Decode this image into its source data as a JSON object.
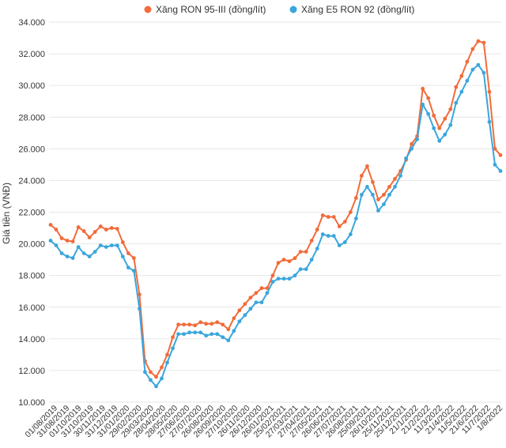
{
  "chart_data": {
    "type": "line",
    "title": "",
    "xlabel": "",
    "ylabel": "Giá tiền (VNĐ)",
    "ylim": [
      10000,
      34000
    ],
    "yticks": [
      10000,
      12000,
      14000,
      16000,
      18000,
      20000,
      22000,
      24000,
      26000,
      28000,
      30000,
      32000,
      34000
    ],
    "ytick_labels": [
      "10.000",
      "12.000",
      "14.000",
      "16.000",
      "18.000",
      "20.000",
      "22.000",
      "24.000",
      "26.000",
      "28.000",
      "30.000",
      "32.000",
      "34.000"
    ],
    "grid": true,
    "legend_position": "top-center",
    "x_tick_labels": [
      "01/08/2019",
      "31/08/2019",
      "01/10/2019",
      "31/10/2019",
      "30/11/2019",
      "31/12/2019",
      "31/01/2020",
      "29/02/2020",
      "29/03/2020",
      "28/04/2020",
      "28/05/2020",
      "27/06/2020",
      "27/07/2020",
      "26/08/2020",
      "26/09/2020",
      "27/10/2020",
      "26/11/2020",
      "26/12/2020",
      "26/01/2021",
      "25/02/2021",
      "27/03/2021",
      "27/04/2021",
      "27/05/2021",
      "26/06/2021",
      "27/07/2021",
      "26/08/2021",
      "25/09/2021",
      "26/10/2021",
      "25/11/2021",
      "25/12/2021",
      "21/1/2022",
      "21/2/2022",
      "11/3/2022",
      "21/4/2022",
      "11/5/2022",
      "21/6/2022",
      "11/7/2022",
      "1/8/2022"
    ],
    "series": [
      {
        "name": "Xăng RON 95-III (đồng/lít)",
        "color": "#f26b3a",
        "values": [
          21200,
          20900,
          20350,
          20200,
          20150,
          21050,
          20800,
          20400,
          20750,
          21100,
          20900,
          21000,
          20950,
          20100,
          19400,
          19100,
          16800,
          12600,
          11900,
          11600,
          12200,
          13000,
          14100,
          14900,
          14900,
          14900,
          14850,
          15050,
          14950,
          14950,
          15050,
          14900,
          14600,
          15300,
          15800,
          16200,
          16600,
          16900,
          17200,
          17200,
          18000,
          18800,
          19000,
          18900,
          19100,
          19500,
          19500,
          20200,
          20900,
          21800,
          21700,
          21700,
          21100,
          21400,
          22000,
          22900,
          24300,
          24900,
          23900,
          22800,
          23100,
          23600,
          24100,
          24600,
          25300,
          26300,
          26800,
          29800,
          29200,
          28100,
          27300,
          27900,
          28500,
          29900,
          30600,
          31500,
          32300,
          32800,
          32700,
          29600,
          26000,
          25600
        ]
      },
      {
        "name": "Xăng E5 RON 92 (đồng/lít)",
        "color": "#3aa6dd",
        "values": [
          20200,
          19900,
          19400,
          19200,
          19100,
          19800,
          19400,
          19200,
          19500,
          19900,
          19800,
          19900,
          19900,
          19200,
          18500,
          18300,
          15900,
          11900,
          11400,
          11000,
          11500,
          12500,
          13400,
          14300,
          14300,
          14400,
          14400,
          14400,
          14200,
          14300,
          14300,
          14100,
          13900,
          14500,
          15100,
          15500,
          15900,
          16300,
          16300,
          16900,
          17600,
          17800,
          17800,
          17800,
          18000,
          18400,
          18400,
          19000,
          19700,
          20600,
          20500,
          20500,
          19900,
          20100,
          20600,
          21600,
          23100,
          23600,
          23100,
          22100,
          22500,
          23100,
          23600,
          24300,
          25400,
          26000,
          26600,
          28800,
          28200,
          27300,
          26500,
          26900,
          27500,
          28900,
          29600,
          30300,
          31000,
          31300,
          30800,
          27700,
          25000,
          24600
        ]
      }
    ]
  }
}
